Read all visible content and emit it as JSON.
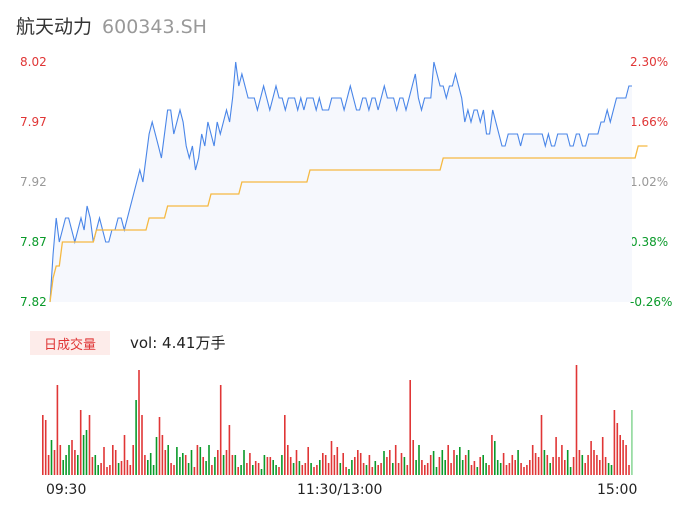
{
  "stock": {
    "name": "航天动力",
    "code": "600343.SH"
  },
  "colors": {
    "up": "#e03636",
    "down": "#0a9a2a",
    "flat": "#999999",
    "price_line": "#4a86e8",
    "avg_line": "#f5b942",
    "area_fill": "#f6f8fd"
  },
  "volume_panel": {
    "label": "日成交量",
    "vol_label": "vol: 4.41万手"
  },
  "chart_data": [
    {
      "type": "line",
      "title": "",
      "x_ticks": [
        "09:30",
        "11:30/13:00",
        "15:00"
      ],
      "y_left_ticks": [
        "8.02",
        "7.97",
        "7.92",
        "7.87",
        "7.82"
      ],
      "y_right_ticks": [
        "2.30%",
        "1.66%",
        "1.02%",
        "0.38%",
        "-0.26%"
      ],
      "ylim": [
        7.82,
        8.02
      ],
      "series": [
        {
          "values": [
            7.82,
            7.86,
            7.89,
            7.87,
            7.88,
            7.89,
            7.89,
            7.88,
            7.87,
            7.88,
            7.89,
            7.88,
            7.9,
            7.89,
            7.87,
            7.88,
            7.89,
            7.88,
            7.87,
            7.87,
            7.88,
            7.88,
            7.89,
            7.89,
            7.88,
            7.89,
            7.9,
            7.91,
            7.92,
            7.93,
            7.92,
            7.94,
            7.96,
            7.97,
            7.96,
            7.95,
            7.94,
            7.96,
            7.98,
            7.98,
            7.96,
            7.97,
            7.98,
            7.97,
            7.95,
            7.94,
            7.95,
            7.93,
            7.94,
            7.96,
            7.95,
            7.97,
            7.96,
            7.95,
            7.97,
            7.96,
            7.97,
            7.98,
            7.97,
            7.99,
            8.02,
            8.0,
            8.01,
            8.0,
            7.99,
            7.99,
            7.99,
            7.98,
            7.99,
            8.0,
            7.99,
            7.98,
            7.99,
            8.0,
            7.99,
            7.99,
            7.98,
            7.99,
            7.99,
            7.99,
            7.98,
            7.99,
            7.98,
            7.99,
            7.99,
            7.99,
            7.98,
            7.99,
            7.98,
            7.98,
            7.98,
            7.99,
            7.99,
            7.99,
            7.99,
            7.98,
            7.99,
            8.0,
            7.99,
            7.98,
            7.98,
            7.99,
            7.99,
            7.98,
            7.99,
            7.99,
            7.98,
            7.99,
            8.0,
            7.99,
            7.99,
            7.99,
            7.98,
            7.99,
            7.99,
            7.98,
            7.99,
            8.0,
            8.01,
            7.99,
            7.98,
            7.99,
            7.99,
            7.99,
            8.02,
            8.01,
            8.0,
            8.0,
            7.99,
            8.0,
            8.0,
            8.01,
            8.0,
            7.99,
            7.97,
            7.98,
            7.97,
            7.98,
            7.98,
            7.97,
            7.98,
            7.96,
            7.96,
            7.98,
            7.97,
            7.96,
            7.95,
            7.95,
            7.96,
            7.96,
            7.96,
            7.96,
            7.95,
            7.96,
            7.96,
            7.96,
            7.96,
            7.96,
            7.96,
            7.96,
            7.95,
            7.96,
            7.95,
            7.95,
            7.96,
            7.96,
            7.96,
            7.96,
            7.95,
            7.95,
            7.96,
            7.96,
            7.95,
            7.95,
            7.96,
            7.96,
            7.96,
            7.96,
            7.97,
            7.97,
            7.98,
            7.97,
            7.98,
            7.99,
            7.99,
            7.99,
            7.99,
            8.0,
            8.0
          ]
        },
        {
          "values": [
            7.82,
            7.84,
            7.85,
            7.85,
            7.87,
            7.87,
            7.87,
            7.87,
            7.87,
            7.87,
            7.87,
            7.87,
            7.87,
            7.87,
            7.87,
            7.88,
            7.88,
            7.88,
            7.88,
            7.88,
            7.88,
            7.88,
            7.88,
            7.88,
            7.88,
            7.88,
            7.88,
            7.88,
            7.88,
            7.88,
            7.88,
            7.88,
            7.89,
            7.89,
            7.89,
            7.89,
            7.89,
            7.89,
            7.9,
            7.9,
            7.9,
            7.9,
            7.9,
            7.9,
            7.9,
            7.9,
            7.9,
            7.9,
            7.9,
            7.9,
            7.9,
            7.9,
            7.91,
            7.91,
            7.91,
            7.91,
            7.91,
            7.91,
            7.91,
            7.91,
            7.91,
            7.91,
            7.92,
            7.92,
            7.92,
            7.92,
            7.92,
            7.92,
            7.92,
            7.92,
            7.92,
            7.92,
            7.92,
            7.92,
            7.92,
            7.92,
            7.92,
            7.92,
            7.92,
            7.92,
            7.92,
            7.92,
            7.92,
            7.92,
            7.93,
            7.93,
            7.93,
            7.93,
            7.93,
            7.93,
            7.93,
            7.93,
            7.93,
            7.93,
            7.93,
            7.93,
            7.93,
            7.93,
            7.93,
            7.93,
            7.93,
            7.93,
            7.93,
            7.93,
            7.93,
            7.93,
            7.93,
            7.93,
            7.93,
            7.93,
            7.93,
            7.93,
            7.93,
            7.93,
            7.93,
            7.93,
            7.93,
            7.93,
            7.93,
            7.93,
            7.93,
            7.93,
            7.93,
            7.93,
            7.93,
            7.93,
            7.93,
            7.94,
            7.94,
            7.94,
            7.94,
            7.94,
            7.94,
            7.94,
            7.94,
            7.94,
            7.94,
            7.94,
            7.94,
            7.94,
            7.94,
            7.94,
            7.94,
            7.94,
            7.94,
            7.94,
            7.94,
            7.94,
            7.94,
            7.94,
            7.94,
            7.94,
            7.94,
            7.94,
            7.94,
            7.94,
            7.94,
            7.94,
            7.94,
            7.94,
            7.94,
            7.94,
            7.94,
            7.94,
            7.94,
            7.94,
            7.94,
            7.94,
            7.94,
            7.94,
            7.94,
            7.94,
            7.94,
            7.94,
            7.94,
            7.94,
            7.94,
            7.94,
            7.94,
            7.94,
            7.94,
            7.94,
            7.94,
            7.94,
            7.94,
            7.94,
            7.94,
            7.94,
            7.94,
            7.94,
            7.95,
            7.95,
            7.95,
            7.95
          ]
        }
      ]
    },
    {
      "type": "bar",
      "title": "",
      "series": [
        {
          "values": [
            60,
            55,
            20,
            35,
            25,
            90,
            30,
            15,
            20,
            30,
            35,
            25,
            20,
            65,
            40,
            45,
            60,
            18,
            20,
            10,
            12,
            28,
            8,
            10,
            30,
            25,
            12,
            14,
            40,
            15,
            10,
            30,
            75,
            105,
            60,
            20,
            15,
            22,
            10,
            38,
            58,
            40,
            25,
            30,
            12,
            10,
            28,
            18,
            22,
            20,
            12,
            25,
            8,
            30,
            28,
            18,
            14,
            30,
            10,
            18,
            25,
            90,
            20,
            25,
            50,
            20,
            20,
            8,
            10,
            25,
            12,
            22,
            10,
            14,
            12,
            6,
            20,
            18,
            18,
            15,
            10,
            8,
            20,
            60,
            30,
            18,
            12,
            25,
            14,
            10,
            12,
            28,
            12,
            8,
            10,
            15,
            22,
            20,
            12,
            34,
            20,
            28,
            12,
            22,
            8,
            6,
            15,
            18,
            25,
            22,
            12,
            10,
            20,
            8,
            14,
            10,
            12,
            24,
            18,
            25,
            12,
            30,
            12,
            22,
            18,
            10,
            95,
            35,
            15,
            30,
            15,
            10,
            12,
            20,
            24,
            8,
            18,
            25,
            15,
            30,
            12,
            25,
            20,
            28,
            15,
            20,
            25,
            10,
            14,
            8,
            18,
            20,
            12,
            10,
            40,
            34,
            15,
            12,
            22,
            10,
            12,
            20,
            15,
            25,
            12,
            8,
            10,
            15,
            30,
            22,
            18,
            60,
            25,
            20,
            12,
            18,
            38,
            18,
            30,
            15,
            25,
            8,
            18,
            110,
            25,
            20,
            12,
            20,
            34,
            25,
            20,
            15,
            38,
            18,
            12,
            10,
            65,
            52,
            40,
            35,
            30,
            10,
            65
          ]
        }
      ]
    }
  ]
}
